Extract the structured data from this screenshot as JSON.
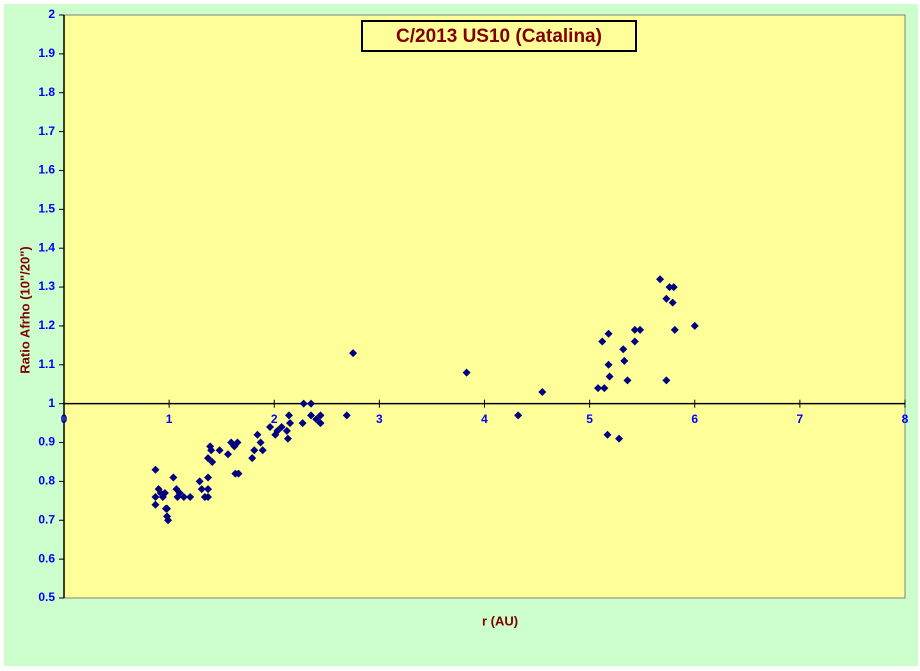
{
  "chart_data": {
    "type": "scatter",
    "title": "C/2013 US10 (Catalina)",
    "x_label": "r (AU)",
    "y_label": "Ratio Afrho (10\"/20\")",
    "color": "#000080",
    "xlim": [
      0,
      8
    ],
    "xticks": [
      0,
      1,
      2,
      3,
      4,
      5,
      6,
      7,
      8
    ],
    "ylim": [
      0.5,
      2
    ],
    "yticks": [
      0.5,
      0.6,
      0.7,
      0.8,
      0.9,
      1,
      1.1,
      1.2,
      1.3,
      1.4,
      1.5,
      1.6,
      1.7,
      1.8,
      1.9,
      2
    ],
    "x_axis_crosses": 1,
    "x": [
      0.87,
      0.87,
      0.87,
      0.9,
      0.92,
      0.94,
      0.96,
      0.97,
      0.98,
      0.99,
      0.98,
      1.04,
      1.07,
      1.08,
      1.1,
      1.14,
      1.2,
      1.29,
      1.31,
      1.34,
      1.37,
      1.37,
      1.37,
      1.37,
      1.39,
      1.4,
      1.41,
      1.48,
      1.56,
      1.59,
      1.62,
      1.65,
      1.63,
      1.66,
      1.79,
      1.81,
      1.84,
      1.87,
      1.89,
      1.96,
      2.01,
      2.03,
      2.07,
      2.12,
      2.13,
      2.14,
      2.15,
      2.28,
      2.27,
      2.35,
      2.35,
      2.4,
      2.44,
      2.44,
      2.69,
      2.75,
      3.83,
      4.32,
      4.55,
      5.08,
      5.14,
      5.12,
      5.18,
      5.18,
      5.19,
      5.17,
      5.28,
      5.32,
      5.33,
      5.36,
      5.43,
      5.43,
      5.48,
      5.67,
      5.73,
      5.76,
      5.8,
      5.79,
      5.81,
      5.73,
      6.0
    ],
    "values": [
      0.83,
      0.76,
      0.74,
      0.78,
      0.77,
      0.76,
      0.77,
      0.73,
      0.71,
      0.7,
      0.73,
      0.81,
      0.78,
      0.76,
      0.77,
      0.76,
      0.76,
      0.8,
      0.78,
      0.76,
      0.86,
      0.81,
      0.78,
      0.76,
      0.89,
      0.88,
      0.85,
      0.88,
      0.87,
      0.9,
      0.89,
      0.9,
      0.82,
      0.82,
      0.86,
      0.88,
      0.92,
      0.9,
      0.88,
      0.94,
      0.92,
      0.93,
      0.94,
      0.93,
      0.91,
      0.97,
      0.95,
      1.0,
      0.95,
      1.0,
      0.97,
      0.96,
      0.97,
      0.95,
      0.97,
      1.13,
      1.08,
      0.97,
      1.03,
      1.04,
      1.04,
      1.16,
      1.18,
      1.1,
      1.07,
      0.92,
      0.91,
      1.14,
      1.11,
      1.06,
      1.16,
      1.19,
      1.19,
      1.32,
      1.27,
      1.3,
      1.3,
      1.26,
      1.19,
      1.06,
      1.2
    ]
  }
}
